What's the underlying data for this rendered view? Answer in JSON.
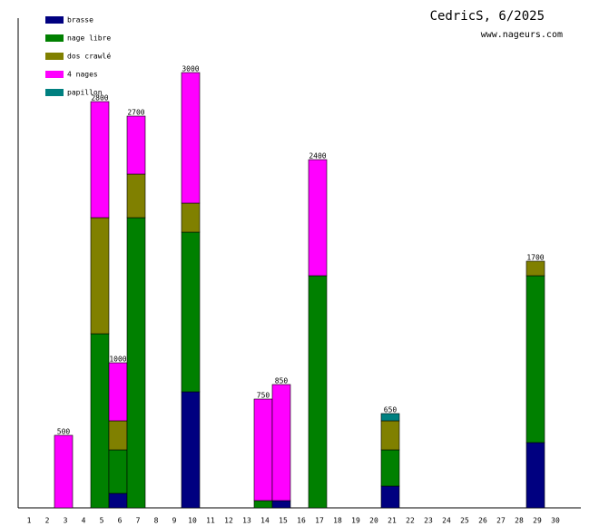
{
  "chart_data": {
    "type": "stacked-bar",
    "title": "CedricS, 6/2025",
    "subtitle": "www.nageurs.com",
    "categories": [
      1,
      2,
      3,
      4,
      5,
      6,
      7,
      8,
      9,
      10,
      11,
      12,
      13,
      14,
      15,
      16,
      17,
      18,
      19,
      20,
      21,
      22,
      23,
      24,
      25,
      26,
      27,
      28,
      29,
      30
    ],
    "series": [
      {
        "name": "brasse",
        "color": "#000080",
        "values": [
          null,
          null,
          null,
          null,
          null,
          100,
          null,
          null,
          null,
          800,
          null,
          null,
          null,
          null,
          50,
          null,
          null,
          null,
          null,
          null,
          150,
          null,
          null,
          null,
          null,
          null,
          null,
          null,
          450,
          null
        ]
      },
      {
        "name": "nage libre",
        "color": "#008000",
        "values": [
          null,
          null,
          null,
          null,
          1200,
          300,
          2000,
          null,
          null,
          1100,
          null,
          null,
          null,
          50,
          null,
          null,
          1600,
          null,
          null,
          null,
          250,
          null,
          null,
          null,
          null,
          null,
          null,
          null,
          1150,
          null
        ]
      },
      {
        "name": "dos crawlé",
        "color": "#808000",
        "values": [
          null,
          null,
          null,
          null,
          800,
          200,
          300,
          null,
          null,
          200,
          null,
          null,
          null,
          null,
          null,
          null,
          null,
          null,
          null,
          null,
          200,
          null,
          null,
          null,
          null,
          null,
          null,
          null,
          100,
          null
        ]
      },
      {
        "name": "4 nages",
        "color": "#ff00ff",
        "values": [
          null,
          null,
          500,
          null,
          800,
          400,
          400,
          null,
          null,
          900,
          null,
          null,
          null,
          700,
          800,
          null,
          800,
          null,
          null,
          null,
          null,
          null,
          null,
          null,
          null,
          null,
          null,
          null,
          null,
          null
        ]
      },
      {
        "name": "papillon",
        "color": "#008080",
        "values": [
          null,
          null,
          null,
          null,
          null,
          null,
          null,
          null,
          null,
          null,
          null,
          null,
          null,
          null,
          null,
          null,
          null,
          null,
          null,
          null,
          50,
          null,
          null,
          null,
          null,
          null,
          null,
          null,
          null,
          null
        ]
      }
    ],
    "totals": [
      null,
      null,
      500,
      null,
      2800,
      1000,
      2700,
      null,
      null,
      3000,
      null,
      null,
      null,
      750,
      850,
      null,
      2400,
      null,
      null,
      null,
      650,
      null,
      null,
      null,
      null,
      null,
      null,
      null,
      1700,
      null
    ],
    "ylim": [
      0,
      3375
    ],
    "legend": "upper left"
  }
}
